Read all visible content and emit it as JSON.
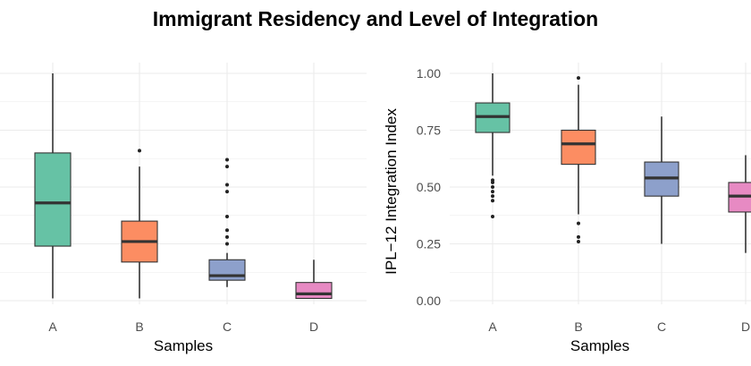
{
  "title": "Immigrant Residency and Level of Integration",
  "chart_data": [
    {
      "type": "box",
      "title": "",
      "xlabel": "Samples",
      "ylabel": "",
      "ylim": [
        0,
        1
      ],
      "yticks": [],
      "grid": true,
      "categories": [
        "A",
        "B",
        "C",
        "D"
      ],
      "colors": [
        "#66c2a5",
        "#fc8d62",
        "#8da0cb",
        "#e78ac3"
      ],
      "boxes": [
        {
          "category": "A",
          "whisker_low": 0.01,
          "q1": 0.24,
          "median": 0.43,
          "q3": 0.65,
          "whisker_high": 1.0,
          "outliers": []
        },
        {
          "category": "B",
          "whisker_low": 0.01,
          "q1": 0.17,
          "median": 0.26,
          "q3": 0.35,
          "whisker_high": 0.59,
          "outliers": [
            0.66
          ]
        },
        {
          "category": "C",
          "whisker_low": 0.06,
          "q1": 0.09,
          "median": 0.11,
          "q3": 0.18,
          "whisker_high": 0.21,
          "outliers": [
            0.25,
            0.28,
            0.31,
            0.37,
            0.48,
            0.51,
            0.59,
            0.62
          ]
        },
        {
          "category": "D",
          "whisker_low": 0.01,
          "q1": 0.01,
          "median": 0.03,
          "q3": 0.08,
          "whisker_high": 0.18,
          "outliers": []
        }
      ]
    },
    {
      "type": "box",
      "title": "",
      "xlabel": "Samples",
      "ylabel": "IPL−12 Integration Index",
      "ylim": [
        0,
        1
      ],
      "yticks": [
        "0.00",
        "0.25",
        "0.50",
        "0.75",
        "1.00"
      ],
      "grid": true,
      "categories": [
        "A",
        "B",
        "C",
        "D"
      ],
      "colors": [
        "#66c2a5",
        "#fc8d62",
        "#8da0cb",
        "#e78ac3"
      ],
      "boxes": [
        {
          "category": "A",
          "whisker_low": 0.55,
          "q1": 0.74,
          "median": 0.81,
          "q3": 0.87,
          "whisker_high": 1.0,
          "outliers": [
            0.37,
            0.44,
            0.46,
            0.48,
            0.5,
            0.52,
            0.53
          ]
        },
        {
          "category": "B",
          "whisker_low": 0.38,
          "q1": 0.6,
          "median": 0.69,
          "q3": 0.75,
          "whisker_high": 0.95,
          "outliers": [
            0.98,
            0.34,
            0.28,
            0.26
          ]
        },
        {
          "category": "C",
          "whisker_low": 0.25,
          "q1": 0.46,
          "median": 0.54,
          "q3": 0.61,
          "whisker_high": 0.81,
          "outliers": []
        },
        {
          "category": "D",
          "whisker_low": 0.21,
          "q1": 0.39,
          "median": 0.46,
          "q3": 0.52,
          "whisker_high": 0.64,
          "outliers": []
        }
      ]
    }
  ]
}
